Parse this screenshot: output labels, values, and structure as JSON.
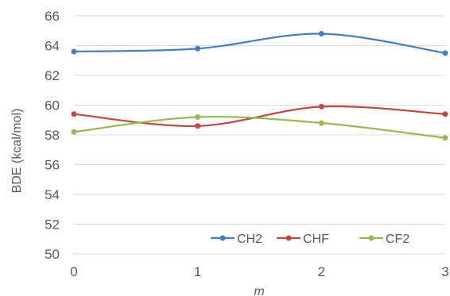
{
  "chart_data": {
    "type": "line",
    "xlabel": "m",
    "ylabel": "BDE (kcal/mol)",
    "x": [
      0,
      1,
      2,
      3
    ],
    "xticks": [
      "0",
      "1",
      "2",
      "3"
    ],
    "ylim": [
      50,
      66
    ],
    "yticks": [
      "50",
      "52",
      "54",
      "56",
      "58",
      "60",
      "62",
      "64",
      "66"
    ],
    "grid": true,
    "legend_position": "bottom-right",
    "series": [
      {
        "name": "CH2",
        "color": "#4a7ebb",
        "values": [
          63.6,
          63.8,
          64.8,
          63.5
        ]
      },
      {
        "name": "CHF",
        "color": "#be4b48",
        "values": [
          59.4,
          58.6,
          59.9,
          59.4
        ]
      },
      {
        "name": "CF2",
        "color": "#98b954",
        "values": [
          58.2,
          59.2,
          58.8,
          57.8
        ]
      }
    ]
  }
}
